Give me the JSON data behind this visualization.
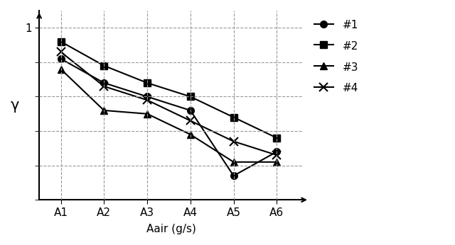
{
  "x_labels": [
    "A1",
    "A2",
    "A3",
    "A4",
    "A5",
    "A6"
  ],
  "series": [
    {
      "label": "#1",
      "y": [
        0.82,
        0.68,
        0.6,
        0.52,
        0.14,
        0.28
      ],
      "marker": "o",
      "color": "#000000",
      "linestyle": "-",
      "markersize": 7,
      "filled": true
    },
    {
      "label": "#2",
      "y": [
        0.92,
        0.78,
        0.68,
        0.6,
        0.48,
        0.36
      ],
      "marker": "s",
      "color": "#000000",
      "linestyle": "-",
      "markersize": 7,
      "filled": true
    },
    {
      "label": "#3",
      "y": [
        0.76,
        0.52,
        0.5,
        0.38,
        0.22,
        0.22
      ],
      "marker": "^",
      "color": "#000000",
      "linestyle": "-",
      "markersize": 7,
      "filled": true
    },
    {
      "label": "#4",
      "y": [
        0.86,
        0.66,
        0.58,
        0.46,
        0.34,
        0.26
      ],
      "marker": "x",
      "color": "#000000",
      "linestyle": "-",
      "markersize": 8,
      "filled": false
    }
  ],
  "ylabel": "γ",
  "xlabel": "Aair (g/s)",
  "background_color": "#ffffff",
  "grid_color": "#999999",
  "grid_linestyle": "--",
  "figsize": [
    6.4,
    3.46
  ],
  "dpi": 100,
  "legend_fontsize": 11,
  "tick_fontsize": 11,
  "ylabel_fontsize": 15,
  "xlabel_fontsize": 11
}
